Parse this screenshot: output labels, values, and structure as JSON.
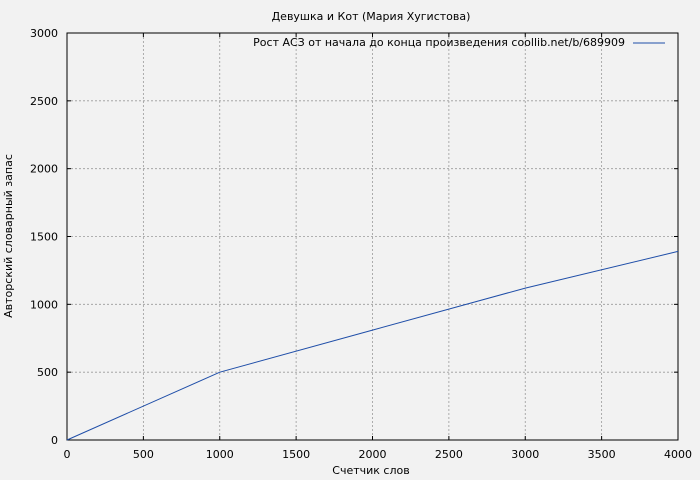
{
  "chart_data": {
    "type": "line",
    "title": "Девушка и Кот (Мария Хугистова)",
    "xlabel": "Счетчик слов",
    "ylabel": "Авторский словарный запас",
    "xlim": [
      0,
      4000
    ],
    "ylim": [
      0,
      3000
    ],
    "xticks": [
      "0",
      "500",
      "1000",
      "1500",
      "2000",
      "2500",
      "3000",
      "3500",
      "4000"
    ],
    "yticks": [
      "0",
      "500",
      "1000",
      "1500",
      "2000",
      "2500",
      "3000"
    ],
    "grid": true,
    "legend_position": "top-right",
    "series": [
      {
        "name": "Рост АСЗ от начала до конца произведения coollib.net/b/689909",
        "color": "#1f4ea8",
        "x": [
          0,
          1000,
          2000,
          3000,
          4000
        ],
        "y": [
          0,
          500,
          810,
          1120,
          1390
        ]
      }
    ]
  }
}
